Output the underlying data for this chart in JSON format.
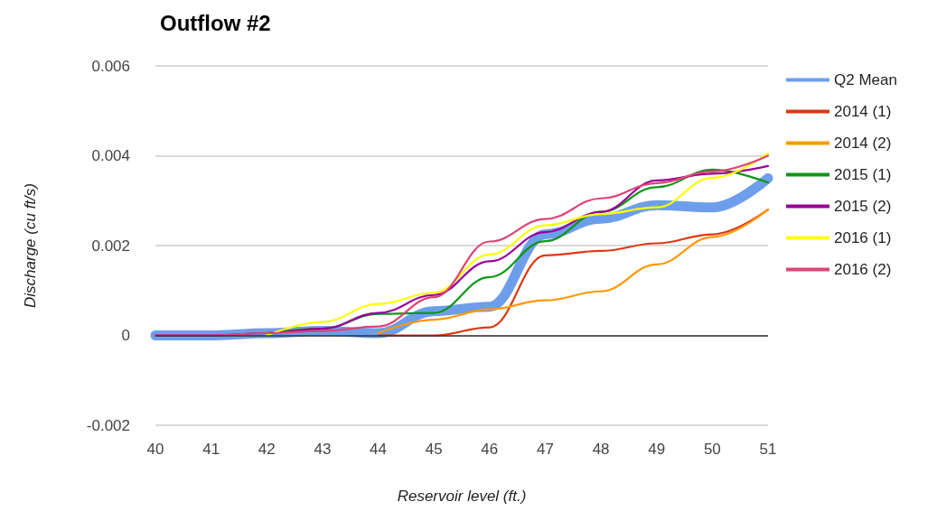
{
  "chart_data": {
    "type": "line",
    "title": "Outflow #2",
    "xlabel": "Reservoir level (ft.)",
    "ylabel": "Discharge (cu ft/s)",
    "x": [
      40,
      41,
      42,
      43,
      44,
      45,
      46,
      47,
      48,
      49,
      50,
      51
    ],
    "series": [
      {
        "name": "Q2 Mean",
        "color": "#6d9eeb",
        "values": [
          0,
          0,
          5e-05,
          0.0001,
          5e-05,
          0.00054,
          0.00064,
          0.00225,
          0.0026,
          0.0029,
          0.00285,
          0.0035
        ]
      },
      {
        "name": "2014 (1)",
        "color": "#dc3912",
        "values": [
          null,
          null,
          null,
          null,
          0,
          0,
          0.00018,
          0.00178,
          0.00188,
          0.00205,
          0.00225,
          0.0028
        ]
      },
      {
        "name": "2014 (2)",
        "color": "#ff9900",
        "values": [
          null,
          null,
          null,
          null,
          5e-05,
          0.00035,
          0.00058,
          0.00078,
          0.00098,
          0.00158,
          0.00219,
          0.0028
        ]
      },
      {
        "name": "2015 (1)",
        "color": "#109618",
        "values": [
          null,
          null,
          5e-05,
          0.00015,
          0.00048,
          0.0005,
          0.0013,
          0.0021,
          0.00275,
          0.0033,
          0.00369,
          0.0034
        ]
      },
      {
        "name": "2015 (2)",
        "color": "#990099",
        "values": [
          0,
          0,
          5e-05,
          0.00015,
          0.0005,
          0.0009,
          0.00165,
          0.0023,
          0.00275,
          0.00345,
          0.0036,
          0.00377
        ]
      },
      {
        "name": "2016 (1)",
        "color": "#ffff00",
        "values": [
          null,
          null,
          0,
          0.0003,
          0.0007,
          0.00095,
          0.0018,
          0.00245,
          0.0027,
          0.00285,
          0.00351,
          0.00405
        ]
      },
      {
        "name": "2016 (2)",
        "color": "#dd4477",
        "values": [
          0,
          0,
          5e-05,
          0.0001,
          0.0002,
          0.00085,
          0.00209,
          0.00259,
          0.00305,
          0.00339,
          0.00365,
          0.004
        ]
      }
    ],
    "xlim": [
      40,
      51
    ],
    "xticks": [
      40,
      41,
      42,
      43,
      44,
      45,
      46,
      47,
      48,
      49,
      50,
      51
    ],
    "ylim": [
      -0.002,
      0.006
    ],
    "yticks": [
      -0.002,
      0,
      0.002,
      0.004,
      0.006
    ],
    "grid": "y",
    "legend": "right",
    "line_style": "solid"
  }
}
